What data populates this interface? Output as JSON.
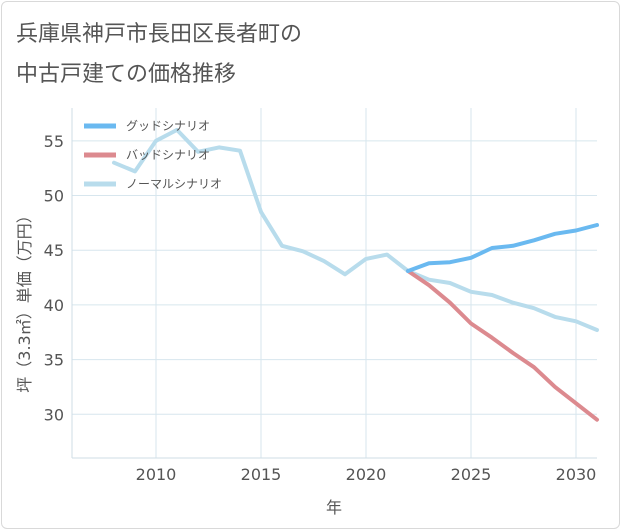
{
  "title": {
    "line1": "兵庫県神戸市長田区長者町の",
    "line2": "中古戸建ての価格推移"
  },
  "chart_data": {
    "type": "line",
    "title": "兵庫県神戸市長田区長者町の中古戸建ての価格推移",
    "xlabel": "年",
    "ylabel": "坪（3.3㎡）単価（万円）",
    "xlim": [
      2006,
      2031
    ],
    "ylim": [
      26,
      58
    ],
    "x_ticks": [
      2010,
      2015,
      2020,
      2025,
      2030
    ],
    "y_ticks": [
      30,
      35,
      40,
      45,
      50,
      55
    ],
    "grid": true,
    "legend_position": "top-left",
    "series": [
      {
        "name": "グッドシナリオ",
        "color": "#6ab9f0",
        "x": [
          2022,
          2023,
          2024,
          2025,
          2026,
          2027,
          2028,
          2029,
          2030,
          2031
        ],
        "y": [
          43.1,
          43.8,
          43.9,
          44.3,
          45.2,
          45.4,
          45.9,
          46.5,
          46.8,
          47.3
        ]
      },
      {
        "name": "バッドシナリオ",
        "color": "#dc8a8f",
        "x": [
          2022,
          2023,
          2024,
          2025,
          2026,
          2027,
          2028,
          2029,
          2030,
          2031
        ],
        "y": [
          43.1,
          41.8,
          40.2,
          38.3,
          37.0,
          35.6,
          34.3,
          32.5,
          31.0,
          29.5
        ]
      },
      {
        "name": "ノーマルシナリオ",
        "color": "#b8dcec",
        "x": [
          2008,
          2009,
          2010,
          2011,
          2012,
          2013,
          2014,
          2015,
          2016,
          2017,
          2018,
          2019,
          2020,
          2021,
          2022,
          2023,
          2024,
          2025,
          2026,
          2027,
          2028,
          2029,
          2030,
          2031
        ],
        "y": [
          53.0,
          52.2,
          55.0,
          56.0,
          54.0,
          54.4,
          54.1,
          48.5,
          45.4,
          44.9,
          44.0,
          42.8,
          44.2,
          44.6,
          43.1,
          42.3,
          42.0,
          41.2,
          40.9,
          40.2,
          39.7,
          38.9,
          38.5,
          37.7
        ]
      }
    ]
  }
}
